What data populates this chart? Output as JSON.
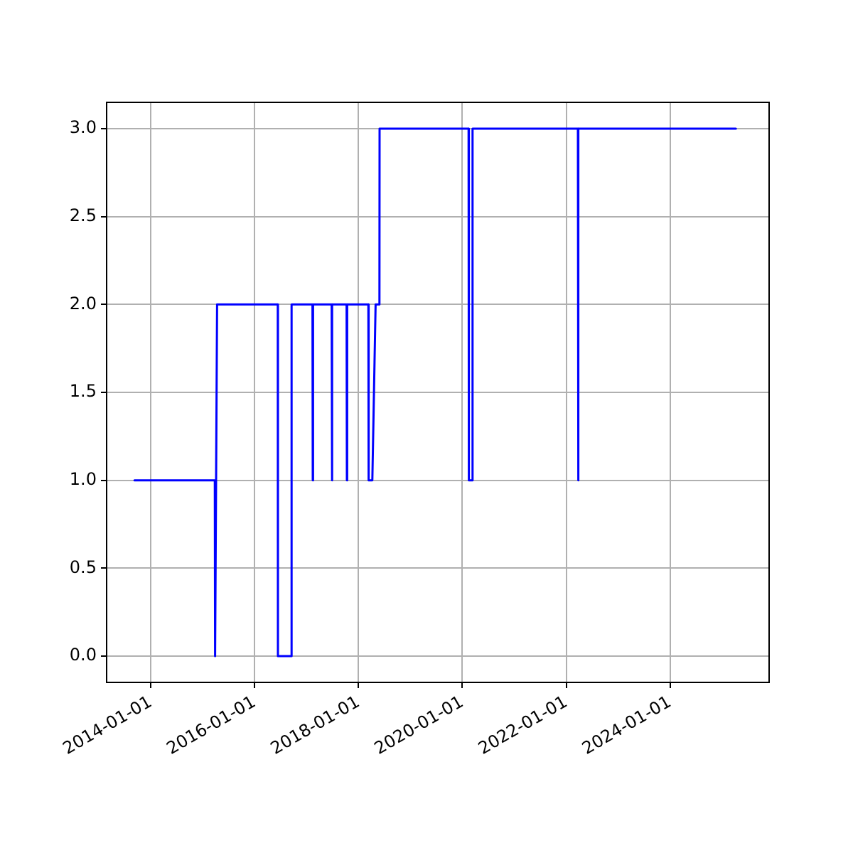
{
  "chart_data": {
    "type": "line",
    "grid": true,
    "xlim": [
      "2013-02-24",
      "2025-11-28"
    ],
    "ylim": [
      -0.15,
      3.15
    ],
    "xticks": [
      "2014-01-01",
      "2016-01-01",
      "2018-01-01",
      "2020-01-01",
      "2022-01-01",
      "2024-01-01"
    ],
    "yticks": [
      {
        "value": 0,
        "label": "0.0"
      },
      {
        "value": 0.5,
        "label": "0.5"
      },
      {
        "value": 1,
        "label": "1.0"
      },
      {
        "value": 1.5,
        "label": "1.5"
      },
      {
        "value": 2,
        "label": "2.0"
      },
      {
        "value": 2.5,
        "label": "2.5"
      },
      {
        "value": 3,
        "label": "3.0"
      }
    ],
    "series": [
      {
        "color": "#0000ff",
        "x": [
          "2013-09-08",
          "2015-03-27",
          "2015-03-29",
          "2015-04-12",
          "2016-06-12",
          "2016-06-13",
          "2016-09-16",
          "2016-09-17",
          "2017-02-11",
          "2017-02-13",
          "2017-02-15",
          "2017-06-26",
          "2017-06-28",
          "2017-06-30",
          "2017-10-09",
          "2017-10-11",
          "2017-10-13",
          "2018-03-11",
          "2018-03-13",
          "2018-04-08",
          "2018-05-01",
          "2018-05-28",
          "2018-05-29",
          "2020-02-14",
          "2020-02-16",
          "2020-03-11",
          "2020-03-13",
          "2022-03-24",
          "2022-03-26",
          "2022-03-28",
          "2025-04-08"
        ],
        "values": [
          1,
          1,
          0,
          2,
          2,
          0,
          0,
          2,
          2,
          1,
          2,
          2,
          1,
          2,
          2,
          1,
          2,
          2,
          1,
          1,
          2,
          2,
          3,
          3,
          1,
          1,
          3,
          3,
          1,
          3,
          3
        ]
      }
    ]
  }
}
